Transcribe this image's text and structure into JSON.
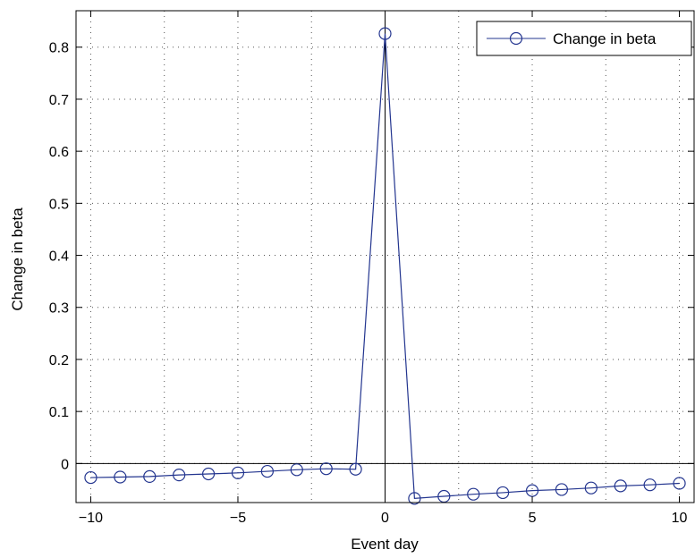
{
  "chart_data": {
    "type": "line",
    "title": "",
    "xlabel": "Event day",
    "ylabel": "Change in beta",
    "xlim": [
      -10.5,
      10.5
    ],
    "ylim": [
      -0.075,
      0.87
    ],
    "grid": true,
    "grid_style": "dotted",
    "reference_lines": {
      "x": 0,
      "y": 0
    },
    "legend_position": "top-right",
    "x_ticks": [
      -10,
      -5,
      0,
      5,
      10
    ],
    "x_tick_labels": [
      "−10",
      "−5",
      "0",
      "5",
      "10"
    ],
    "x_minor_grid": [
      -7.5,
      -2.5,
      2.5,
      7.5
    ],
    "y_ticks": [
      0,
      0.1,
      0.2,
      0.3,
      0.4,
      0.5,
      0.6,
      0.7,
      0.8
    ],
    "y_tick_labels": [
      "0",
      "0.1",
      "0.2",
      "0.3",
      "0.4",
      "0.5",
      "0.6",
      "0.7",
      "0.8"
    ],
    "series": [
      {
        "name": "Change in beta",
        "color": "#23358f",
        "marker": "open-circle",
        "x": [
          -10,
          -9,
          -8,
          -7,
          -6,
          -5,
          -4,
          -3,
          -2,
          -1,
          0,
          1,
          2,
          3,
          4,
          5,
          6,
          7,
          8,
          9,
          10
        ],
        "y": [
          -0.027,
          -0.026,
          -0.025,
          -0.022,
          -0.02,
          -0.018,
          -0.015,
          -0.012,
          -0.01,
          -0.011,
          0.826,
          -0.067,
          -0.063,
          -0.059,
          -0.056,
          -0.052,
          -0.05,
          -0.047,
          -0.043,
          -0.041,
          -0.038
        ]
      }
    ]
  }
}
